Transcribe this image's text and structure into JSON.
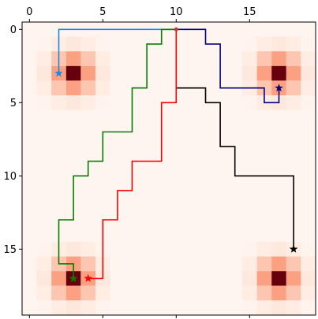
{
  "chart_data": {
    "type": "heatmap",
    "title": "",
    "xlabel": "",
    "ylabel": "",
    "x_axis_position": "top",
    "xlim": [
      -0.5,
      19.5
    ],
    "ylim": [
      19.5,
      -0.5
    ],
    "x_ticks": [
      0,
      5,
      10,
      15
    ],
    "y_ticks": [
      0,
      5,
      10,
      15
    ],
    "colormap": "Reds",
    "background_color": "#fff5f0",
    "grid": false,
    "legend": "none",
    "heat_centers": [
      [
        3,
        3
      ],
      [
        3,
        17
      ],
      [
        17,
        3
      ],
      [
        17,
        17
      ]
    ],
    "heat_radius": 2,
    "start_point": {
      "x": 10,
      "y": 0,
      "color": "#c0392b"
    },
    "paths": [
      {
        "color": "#1e88e5",
        "goal": [
          2,
          3
        ],
        "points": [
          [
            10,
            0
          ],
          [
            2,
            0
          ],
          [
            2,
            3
          ]
        ]
      },
      {
        "color": "#000080",
        "goal": [
          17,
          4
        ],
        "points": [
          [
            10,
            0
          ],
          [
            12,
            0
          ],
          [
            12,
            1
          ],
          [
            13,
            1
          ],
          [
            13,
            4
          ],
          [
            16,
            4
          ],
          [
            16,
            5
          ],
          [
            17,
            5
          ],
          [
            17,
            4
          ]
        ]
      },
      {
        "color": "#000000",
        "goal": [
          18,
          15
        ],
        "points": [
          [
            10,
            0
          ],
          [
            10,
            4
          ],
          [
            12,
            4
          ],
          [
            12,
            5
          ],
          [
            13,
            5
          ],
          [
            13,
            8
          ],
          [
            14,
            8
          ],
          [
            14,
            10
          ],
          [
            18,
            10
          ],
          [
            18,
            15
          ]
        ]
      },
      {
        "color": "#ff0000",
        "goal": [
          4,
          17
        ],
        "points": [
          [
            10,
            0
          ],
          [
            10,
            5
          ],
          [
            9,
            5
          ],
          [
            9,
            9
          ],
          [
            7,
            9
          ],
          [
            7,
            11
          ],
          [
            6,
            11
          ],
          [
            6,
            13
          ],
          [
            5,
            13
          ],
          [
            5,
            17
          ],
          [
            4,
            17
          ]
        ]
      },
      {
        "color": "#008000",
        "goal": [
          3,
          17
        ],
        "points": [
          [
            10,
            0
          ],
          [
            9,
            0
          ],
          [
            9,
            1
          ],
          [
            8,
            1
          ],
          [
            8,
            4
          ],
          [
            7,
            4
          ],
          [
            7,
            7
          ],
          [
            5,
            7
          ],
          [
            5,
            9
          ],
          [
            4,
            9
          ],
          [
            4,
            10
          ],
          [
            3,
            10
          ],
          [
            3,
            13
          ],
          [
            2,
            13
          ],
          [
            2,
            16
          ],
          [
            3,
            16
          ],
          [
            3,
            17
          ]
        ]
      }
    ]
  }
}
